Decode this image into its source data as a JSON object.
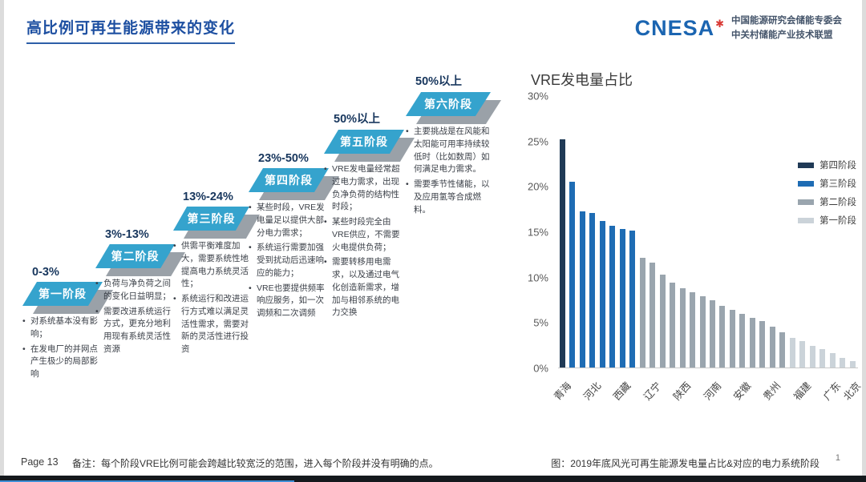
{
  "header": {
    "title": "高比例可再生能源带来的变化",
    "logo": {
      "brand": "CNESA",
      "star": "✱",
      "org_line1": "中国能源研究会储能专委会",
      "org_line2": "中关村储能产业技术联盟"
    }
  },
  "stages": [
    {
      "range": "0-3%",
      "name": "第一阶段",
      "bullets": [
        "对系统基本没有影响；",
        "在发电厂的并网点产生极少的局部影响"
      ]
    },
    {
      "range": "3%-13%",
      "name": "第二阶段",
      "bullets": [
        "负荷与净负荷之间的变化日益明显；",
        "需要改进系统运行方式，更充分地利用现有系统灵活性资源"
      ]
    },
    {
      "range": "13%-24%",
      "name": "第三阶段",
      "bullets": [
        "供需平衡难度加大，需要系统性地提高电力系统灵活性；",
        "系统运行和改进运行方式难以满足灵活性需求，需要对新的灵活性进行投资"
      ]
    },
    {
      "range": "23%-50%",
      "name": "第四阶段",
      "bullets": [
        "某些时段，VRE发电量足以提供大部分电力需求；",
        "系统运行需要加强受到扰动后迅速响应的能力；",
        "VRE也要提供频率响应服务，如一次调频和二次调频"
      ]
    },
    {
      "range": "50%以上",
      "name": "第五阶段",
      "bullets": [
        "VRE发电量经常超过电力需求，出现负净负荷的结构性时段；",
        "某些时段完全由VRE供应，不需要火电提供负荷；",
        "需要转移用电需求，以及通过电气化创造新需求，增加与相邻系统的电力交换"
      ]
    },
    {
      "range": "50%以上",
      "name": "第六阶段",
      "bullets": [
        "主要挑战是在风能和太阳能可用率持续较低时（比如数周）如何满足电力需求。",
        "需要季节性储能，以及应用氢等合成燃料。"
      ]
    }
  ],
  "chart_data": {
    "type": "bar",
    "title": "VRE发电量占比",
    "xlabel": "",
    "ylabel": "",
    "ylim": [
      0,
      30
    ],
    "yticks": [
      "30%",
      "25%",
      "20%",
      "15%",
      "10%",
      "5%",
      "0%"
    ],
    "grid": false,
    "legend_position": "top-right",
    "legend": [
      "第四阶段",
      "第三阶段",
      "第二阶段",
      "第一阶段"
    ],
    "stage_colors": {
      "第四阶段": "#203a56",
      "第三阶段": "#1e6cb4",
      "第二阶段": "#9aa5ae",
      "第一阶段": "#cbd3d9"
    },
    "bars": [
      {
        "label": "青海",
        "value": 25.2,
        "stage": "第四阶段"
      },
      {
        "label": "",
        "value": 20.5,
        "stage": "第三阶段"
      },
      {
        "label": "",
        "value": 17.3,
        "stage": "第三阶段"
      },
      {
        "label": "河北",
        "value": 17.1,
        "stage": "第三阶段"
      },
      {
        "label": "",
        "value": 16.2,
        "stage": "第三阶段"
      },
      {
        "label": "",
        "value": 15.7,
        "stage": "第三阶段"
      },
      {
        "label": "西藏",
        "value": 15.3,
        "stage": "第三阶段"
      },
      {
        "label": "",
        "value": 15.1,
        "stage": "第三阶段"
      },
      {
        "label": "",
        "value": 12.1,
        "stage": "第二阶段"
      },
      {
        "label": "辽宁",
        "value": 11.6,
        "stage": "第二阶段"
      },
      {
        "label": "",
        "value": 10.3,
        "stage": "第二阶段"
      },
      {
        "label": "",
        "value": 9.4,
        "stage": "第二阶段"
      },
      {
        "label": "陕西",
        "value": 8.8,
        "stage": "第二阶段"
      },
      {
        "label": "",
        "value": 8.3,
        "stage": "第二阶段"
      },
      {
        "label": "",
        "value": 7.9,
        "stage": "第二阶段"
      },
      {
        "label": "河南",
        "value": 7.4,
        "stage": "第二阶段"
      },
      {
        "label": "",
        "value": 6.8,
        "stage": "第二阶段"
      },
      {
        "label": "",
        "value": 6.4,
        "stage": "第二阶段"
      },
      {
        "label": "安徽",
        "value": 5.9,
        "stage": "第二阶段"
      },
      {
        "label": "",
        "value": 5.5,
        "stage": "第二阶段"
      },
      {
        "label": "",
        "value": 5.1,
        "stage": "第二阶段"
      },
      {
        "label": "贵州",
        "value": 4.5,
        "stage": "第二阶段"
      },
      {
        "label": "",
        "value": 3.9,
        "stage": "第二阶段"
      },
      {
        "label": "",
        "value": 3.3,
        "stage": "第一阶段"
      },
      {
        "label": "福建",
        "value": 2.9,
        "stage": "第一阶段"
      },
      {
        "label": "",
        "value": 2.4,
        "stage": "第一阶段"
      },
      {
        "label": "",
        "value": 2.0,
        "stage": "第一阶段"
      },
      {
        "label": "广东",
        "value": 1.6,
        "stage": "第一阶段"
      },
      {
        "label": "",
        "value": 1.1,
        "stage": "第一阶段"
      },
      {
        "label": "北京",
        "value": 0.7,
        "stage": "第一阶段"
      }
    ]
  },
  "footer": {
    "page": "Page 13",
    "note": "备注：每个阶段VRE比例可能会跨越比较宽泛的范围，进入每个阶段并没有明确的点。",
    "caption": "图：2019年底风光可再生能源发电量占比&对应的电力系统阶段",
    "page_number": "1"
  },
  "theme": {
    "title_blue": "#1d4fa1",
    "step_blue": "#35a3cd",
    "step_shadow_gray": "#9aa1a8",
    "range_navy": "#17365d",
    "brand_blue": "#1b65b1",
    "star_red": "#d93a35"
  }
}
